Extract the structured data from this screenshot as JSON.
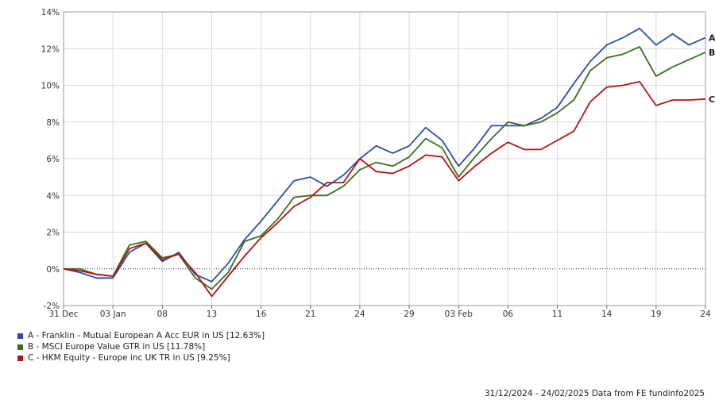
{
  "chart_data": {
    "type": "line",
    "x_tick_labels": [
      "31 Dec",
      "03 Jan",
      "08",
      "13",
      "16",
      "21",
      "24",
      "29",
      "03 Feb",
      "06",
      "11",
      "14",
      "19",
      "24"
    ],
    "y_tick_labels": [
      "14%",
      "12%",
      "10%",
      "8%",
      "6%",
      "4%",
      "2%",
      "0%",
      "-2%"
    ],
    "ylim": [
      -2,
      14
    ],
    "grid": true,
    "series": [
      {
        "id": "A",
        "name": "A - Franklin - Mutual European A Acc EUR in US [12.63%]",
        "end_label": "A",
        "color": "#2a4fa0",
        "values": [
          0,
          -0.2,
          -0.5,
          -0.5,
          0.9,
          1.4,
          0.4,
          0.9,
          -0.3,
          -0.7,
          0.3,
          1.6,
          2.6,
          3.7,
          4.8,
          5.0,
          4.5,
          5.1,
          6.0,
          6.7,
          6.3,
          6.7,
          7.7,
          7.0,
          5.6,
          6.6,
          7.8,
          7.8,
          7.8,
          8.2,
          8.8,
          10.1,
          11.3,
          12.2,
          12.6,
          13.1,
          12.2,
          12.8,
          12.2,
          12.6
        ]
      },
      {
        "id": "B",
        "name": "B - MSCI Europe Value GTR in US [11.78%]",
        "end_label": "B",
        "color": "#3d6e1c",
        "values": [
          0,
          0,
          -0.3,
          -0.4,
          1.3,
          1.5,
          0.6,
          0.8,
          -0.5,
          -1.1,
          -0.2,
          1.5,
          1.8,
          2.7,
          3.9,
          4.0,
          4.0,
          4.5,
          5.4,
          5.8,
          5.6,
          6.1,
          7.1,
          6.6,
          5.0,
          6.1,
          7.1,
          8.0,
          7.8,
          8.0,
          8.5,
          9.2,
          10.8,
          11.5,
          11.7,
          12.1,
          10.5,
          11.0,
          11.4,
          11.8
        ]
      },
      {
        "id": "C",
        "name": "C - HKM Equity - Europe inc UK TR in US [9.25%]",
        "end_label": "C",
        "color": "#b01414",
        "values": [
          0,
          -0.1,
          -0.3,
          -0.4,
          1.1,
          1.4,
          0.5,
          0.8,
          -0.2,
          -1.5,
          -0.4,
          0.7,
          1.7,
          2.5,
          3.4,
          3.9,
          4.7,
          4.7,
          6.0,
          5.3,
          5.2,
          5.6,
          6.2,
          6.1,
          4.8,
          5.6,
          6.3,
          6.9,
          6.5,
          6.5,
          7.0,
          7.5,
          9.1,
          9.9,
          10.0,
          10.2,
          8.9,
          9.2,
          9.2,
          9.25
        ]
      }
    ]
  },
  "legend": {
    "items": [
      {
        "label": "A - Franklin - Mutual European A Acc EUR in US [12.63%]",
        "color": "#2a4fa0"
      },
      {
        "label": "B - MSCI Europe Value GTR in US [11.78%]",
        "color": "#3d6e1c"
      },
      {
        "label": "C - HKM Equity - Europe inc UK TR in US [9.25%]",
        "color": "#b01414"
      }
    ]
  },
  "footer": {
    "text": "31/12/2024 - 24/02/2025 Data from FE fundinfo2025"
  }
}
